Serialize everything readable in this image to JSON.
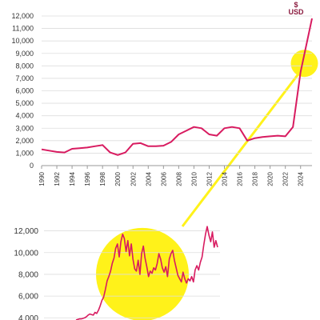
{
  "colors": {
    "line": "#d81b60",
    "highlight": "#fff21a",
    "axis": "#999999",
    "grid": "#dddddd",
    "text": "#333333",
    "unit": "#8a1a3e"
  },
  "chart_data": [
    {
      "type": "line",
      "unit_label_top": "$",
      "unit_label": "USD",
      "ylim": [
        0,
        12000
      ],
      "yticks": [
        0,
        1000,
        2000,
        3000,
        4000,
        5000,
        6000,
        7000,
        8000,
        9000,
        10000,
        11000,
        12000
      ],
      "ytick_labels": [
        "0",
        "1,000",
        "2,000",
        "3,000",
        "4,000",
        "5,000",
        "6,000",
        "7,000",
        "8,000",
        "9,000",
        "10,000",
        "11,000",
        "12,000"
      ],
      "xlim": [
        1990,
        2025.5
      ],
      "xtick_labels": [
        "1990",
        "1992",
        "1994",
        "1996",
        "1998",
        "2000",
        "2002",
        "2004",
        "2006",
        "2008",
        "2010",
        "2012",
        "2014",
        "2016",
        "2018",
        "2020",
        "2022",
        "2024"
      ],
      "highlight_center": [
        2024.5,
        8200
      ],
      "series": [
        {
          "x": [
            1990,
            1991,
            1992,
            1993,
            1994,
            1995,
            1996,
            1997,
            1998,
            1999,
            2000,
            2001,
            2002,
            2003,
            2004,
            2005,
            2006,
            2007,
            2008,
            2009,
            2010,
            2011,
            2012,
            2013,
            2014,
            2015,
            2016,
            2017,
            2018,
            2019,
            2020,
            2021,
            2022,
            2023,
            2024,
            2025.5
          ],
          "y": [
            1300,
            1200,
            1100,
            1050,
            1350,
            1400,
            1450,
            1550,
            1650,
            1050,
            850,
            1050,
            1750,
            1800,
            1550,
            1550,
            1600,
            1900,
            2500,
            2800,
            3100,
            3000,
            2500,
            2400,
            3000,
            3100,
            3000,
            2000,
            2200,
            2300,
            2350,
            2400,
            2350,
            3100,
            7500,
            11800
          ]
        }
      ]
    },
    {
      "type": "line",
      "ylim": [
        3800,
        13000
      ],
      "yticks": [
        4000,
        6000,
        8000,
        10000,
        12000
      ],
      "ytick_labels": [
        "4,000",
        "6,000",
        "8,000",
        "10,000",
        "12,000"
      ],
      "highlight_center_value": 8000,
      "series": [
        {
          "y": [
            3800,
            3850,
            3900,
            3900,
            3950,
            4000,
            4100,
            4250,
            4350,
            4300,
            4250,
            4500,
            4400,
            4700,
            5100,
            5600,
            5900,
            6600,
            7400,
            7800,
            8300,
            9000,
            9500,
            10400,
            10800,
            9600,
            11000,
            11700,
            11300,
            10100,
            11100,
            9700,
            10800,
            9400,
            8500,
            8300,
            9300,
            8000,
            9900,
            10600,
            9500,
            8700,
            7800,
            8300,
            8100,
            8600,
            8400,
            9000,
            9900,
            9400,
            8600,
            8200,
            8700,
            7800,
            9400,
            9900,
            10200,
            9300,
            8600,
            7900,
            7600,
            7300,
            8200,
            7600,
            7200,
            7600,
            7400,
            7800,
            7300,
            8400,
            8800,
            8400,
            9100,
            9600,
            10700,
            11700,
            12400,
            11600,
            11000,
            11900,
            10500,
            11100,
            10500
          ]
        }
      ]
    }
  ]
}
